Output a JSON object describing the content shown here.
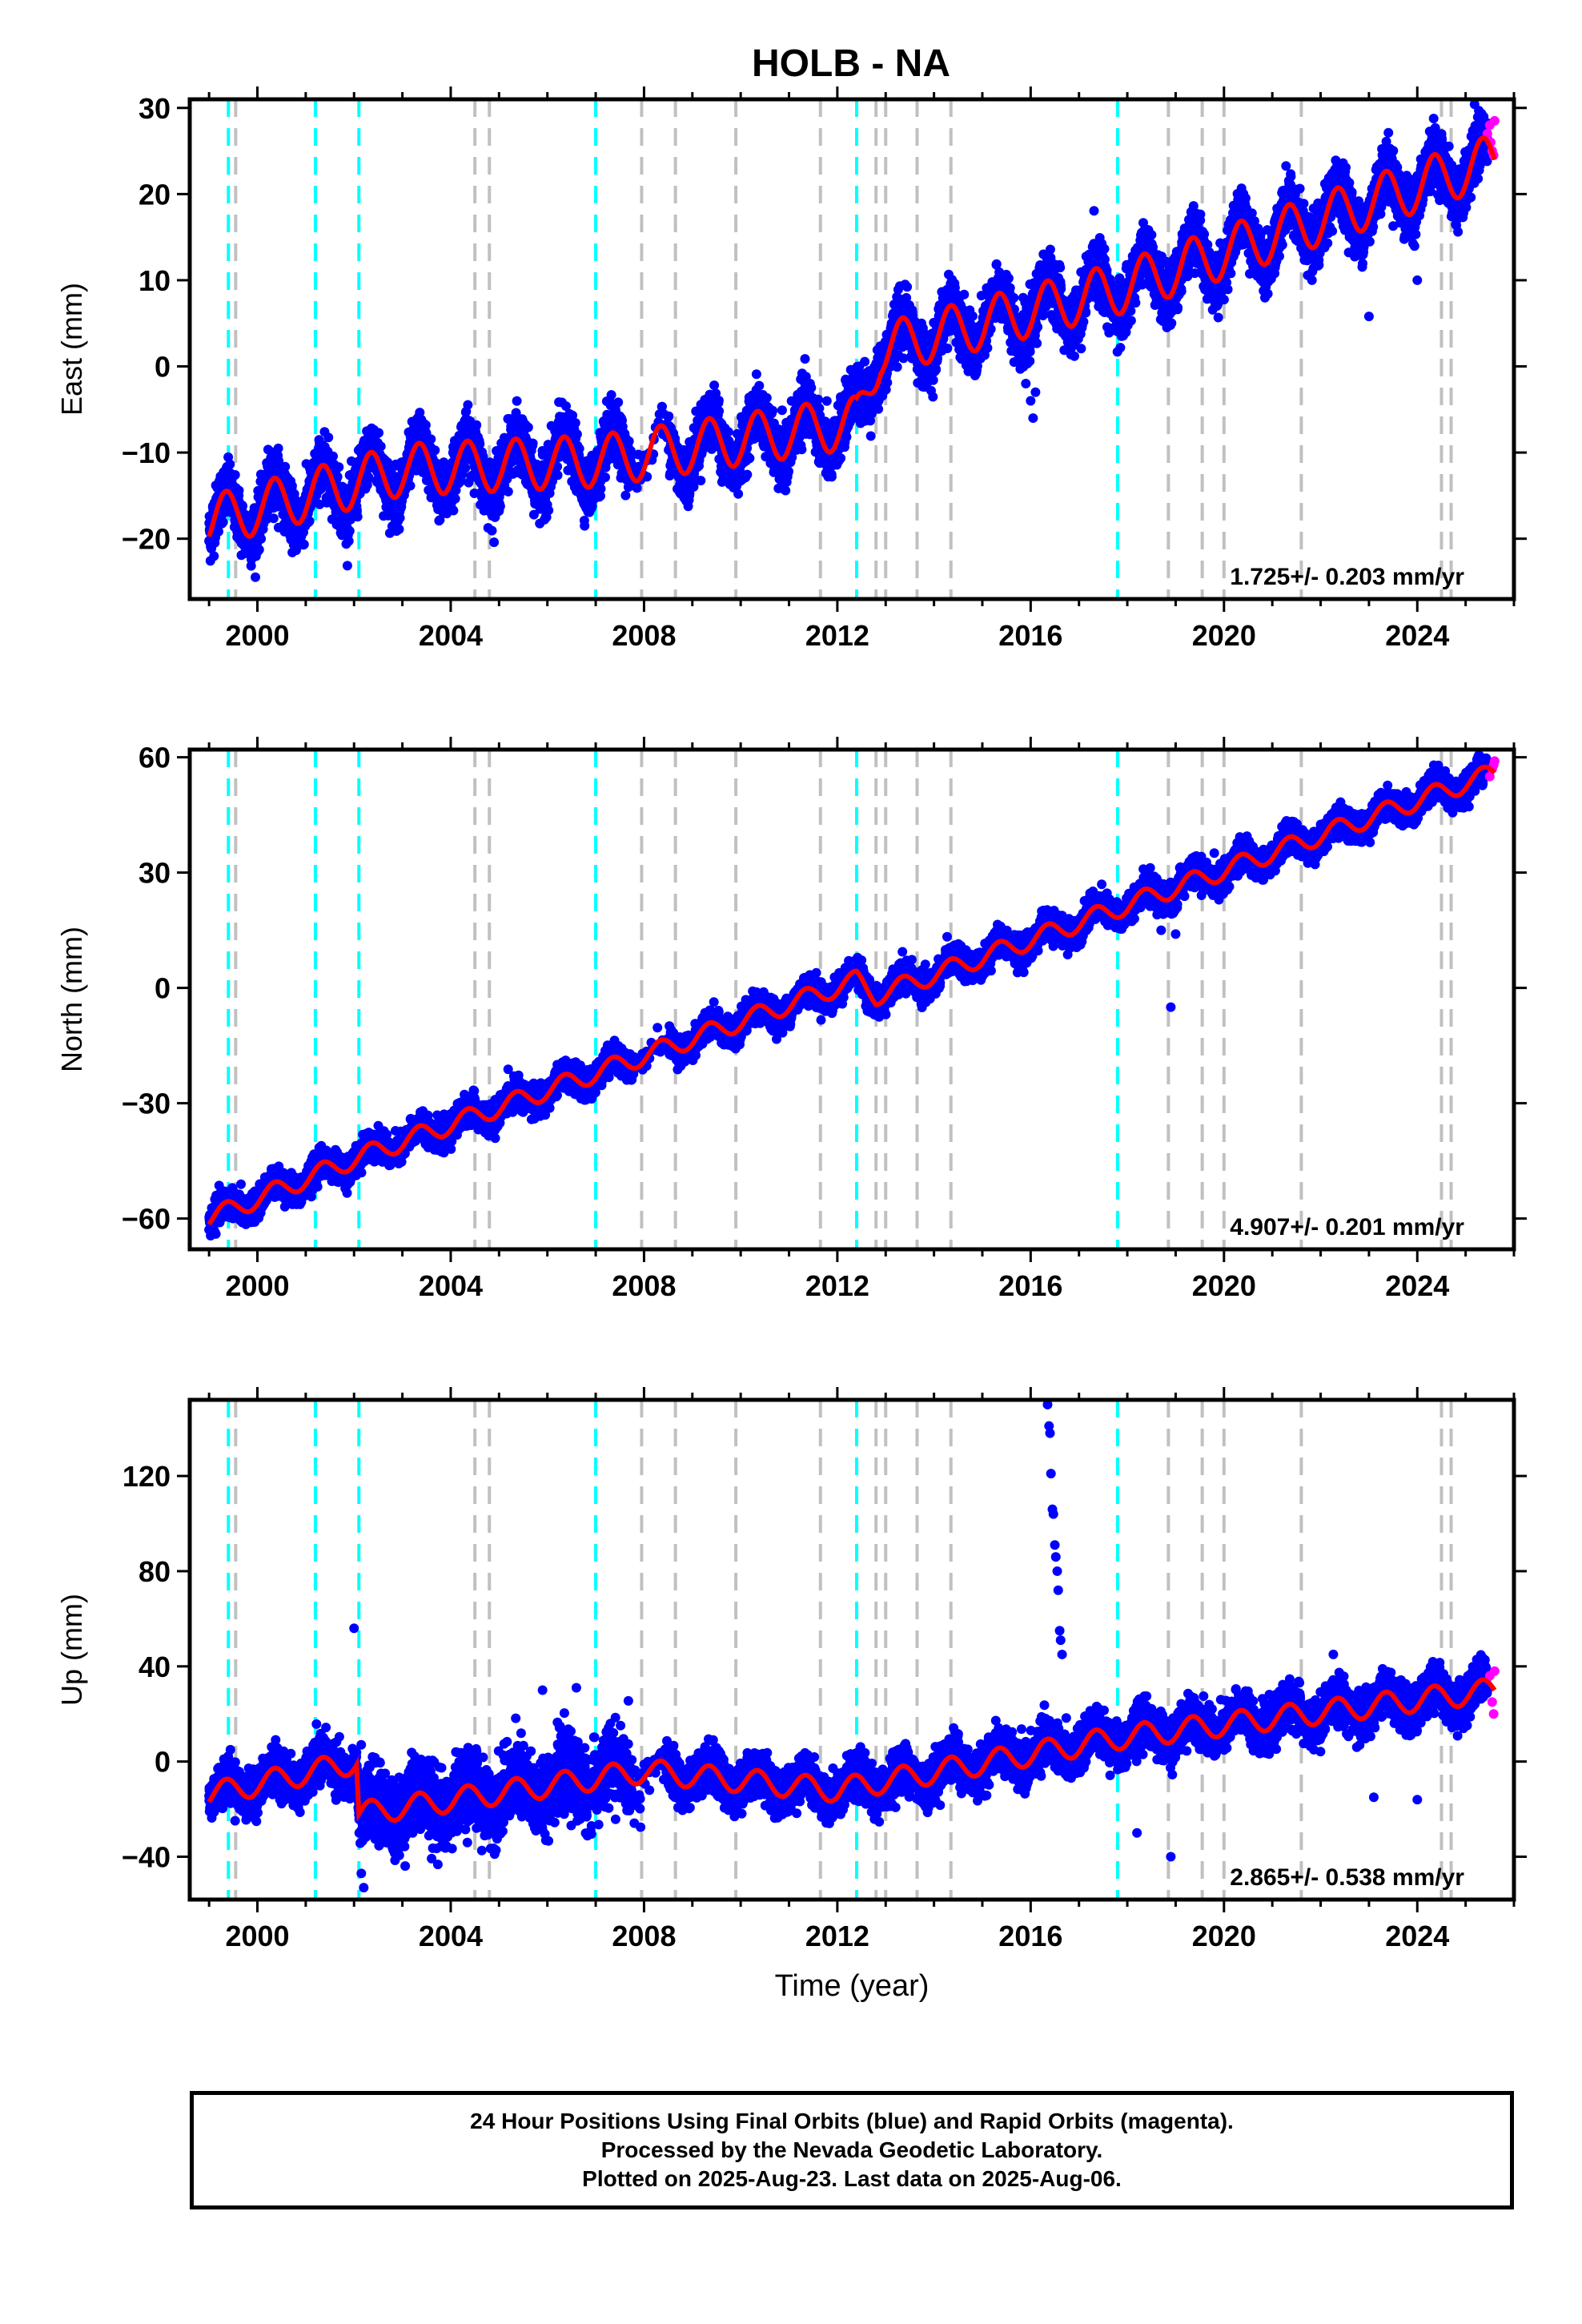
{
  "title": "HOLB - NA",
  "footer": {
    "line1": "24 Hour Positions Using Final Orbits (blue) and Rapid Orbits (magenta).",
    "line2": "Processed by the Nevada Geodetic Laboratory.",
    "line3": "Plotted on 2025-Aug-23. Last data on 2025-Aug-06."
  },
  "colors": {
    "final_orbits": "#0000ff",
    "rapid_orbits": "#ff00ff",
    "model": "#ff0000",
    "equipment_change": "#00ffff",
    "earthquake": "#c0c0c0"
  },
  "chart_data": [
    {
      "type": "scatter",
      "panel": "east",
      "ylabel": "East (mm)",
      "xlabel": "",
      "xlim": [
        1998.6,
        2026.0
      ],
      "ylim": [
        -27,
        31
      ],
      "xticks": [
        2000,
        2004,
        2008,
        2012,
        2016,
        2020,
        2024
      ],
      "yticks": [
        -20,
        -10,
        0,
        10,
        20,
        30
      ],
      "rate_label": "1.725+/- 0.203 mm/yr",
      "rate": 1.725,
      "trend_points": [
        [
          1999.0,
          -18
        ],
        [
          2003.0,
          -12
        ],
        [
          2007.0,
          -11
        ],
        [
          2012.4,
          -6.5
        ],
        [
          2012.9,
          2
        ],
        [
          2017.8,
          9
        ],
        [
          2019.9,
          13
        ],
        [
          2025.6,
          24
        ]
      ],
      "annual_amplitude": 3.0,
      "scatter_sd": 1.6,
      "outliers": [
        [
          2015.9,
          -2
        ],
        [
          2016.0,
          -4
        ],
        [
          2016.05,
          -6
        ],
        [
          2016.1,
          -3
        ],
        [
          2023.0,
          5.8
        ],
        [
          2024.0,
          10
        ]
      ],
      "rapid_points": [
        [
          2025.45,
          27
        ],
        [
          2025.5,
          28
        ],
        [
          2025.52,
          26
        ],
        [
          2025.55,
          25
        ],
        [
          2025.58,
          24.5
        ],
        [
          2025.6,
          28.5
        ]
      ],
      "equipment_changes": [
        1999.4,
        2001.2,
        2002.1,
        2007.0,
        2012.4,
        2017.8
      ],
      "earthquakes": [
        1999.55,
        2004.5,
        2004.8,
        2007.95,
        2008.65,
        2009.9,
        2011.65,
        2012.8,
        2013.0,
        2013.65,
        2014.35,
        2018.85,
        2019.55,
        2020.0,
        2021.6,
        2024.5,
        2024.7
      ]
    },
    {
      "type": "scatter",
      "panel": "north",
      "ylabel": "North (mm)",
      "xlabel": "",
      "xlim": [
        1998.6,
        2026.0
      ],
      "ylim": [
        -68,
        62
      ],
      "xticks": [
        2000,
        2004,
        2008,
        2012,
        2016,
        2020,
        2024
      ],
      "yticks": [
        -60,
        -30,
        0,
        30,
        60
      ],
      "rate_label": "4.907+/- 0.201 mm/yr",
      "rate": 4.907,
      "trend_points": [
        [
          1999.0,
          -60
        ],
        [
          2002.1,
          -44
        ],
        [
          2012.4,
          2
        ],
        [
          2012.8,
          -2
        ],
        [
          2025.6,
          56
        ]
      ],
      "annual_amplitude": 2.5,
      "scatter_sd": 1.8,
      "outliers": [
        [
          2018.9,
          -5
        ],
        [
          2018.7,
          15
        ],
        [
          2019.0,
          14
        ],
        [
          2002.5,
          -43
        ]
      ],
      "rapid_points": [
        [
          2025.5,
          55
        ],
        [
          2025.55,
          57
        ],
        [
          2025.58,
          58
        ],
        [
          2025.6,
          59
        ]
      ],
      "equipment_changes": [
        1999.4,
        2001.2,
        2002.1,
        2007.0,
        2012.4,
        2017.8
      ],
      "earthquakes": [
        1999.55,
        2004.5,
        2004.8,
        2007.95,
        2008.65,
        2009.9,
        2011.65,
        2012.8,
        2013.0,
        2013.65,
        2014.35,
        2018.85,
        2019.55,
        2020.0,
        2021.6,
        2024.5,
        2024.7
      ]
    },
    {
      "type": "scatter",
      "panel": "up",
      "ylabel": "Up (mm)",
      "xlabel": "Time (year)",
      "xlim": [
        1998.6,
        2026.0
      ],
      "ylim": [
        -58,
        152
      ],
      "xticks": [
        2000,
        2004,
        2008,
        2012,
        2016,
        2020,
        2024
      ],
      "yticks": [
        -40,
        0,
        40,
        80,
        120
      ],
      "rate_label": "2.865+/- 0.538 mm/yr",
      "rate": 2.865,
      "trend_points": [
        [
          1999.0,
          -14
        ],
        [
          2002.05,
          0
        ],
        [
          2002.1,
          -22
        ],
        [
          2008.0,
          -4
        ],
        [
          2012.0,
          -12
        ],
        [
          2017.8,
          10
        ],
        [
          2025.6,
          30
        ]
      ],
      "annual_amplitude": 5.0,
      "scatter_sd": 4.5,
      "outliers": [
        [
          2016.35,
          150
        ],
        [
          2016.38,
          141
        ],
        [
          2016.4,
          138
        ],
        [
          2016.42,
          121
        ],
        [
          2016.45,
          106
        ],
        [
          2016.47,
          104
        ],
        [
          2016.5,
          91
        ],
        [
          2016.52,
          86
        ],
        [
          2016.55,
          80
        ],
        [
          2016.57,
          72
        ],
        [
          2016.6,
          55
        ],
        [
          2016.62,
          51
        ],
        [
          2016.65,
          45
        ],
        [
          2002.0,
          56
        ],
        [
          2002.15,
          -47
        ],
        [
          2002.2,
          -53
        ],
        [
          2018.2,
          -30
        ],
        [
          2018.9,
          -40
        ],
        [
          2023.1,
          -15
        ],
        [
          2024.0,
          -16
        ],
        [
          2005.9,
          30
        ],
        [
          2006.6,
          31
        ]
      ],
      "rapid_points": [
        [
          2025.5,
          36
        ],
        [
          2025.55,
          25
        ],
        [
          2025.58,
          20
        ],
        [
          2025.6,
          38
        ]
      ],
      "equipment_changes": [
        1999.4,
        2001.2,
        2002.1,
        2007.0,
        2012.4,
        2017.8
      ],
      "earthquakes": [
        1999.55,
        2004.5,
        2004.8,
        2007.95,
        2008.65,
        2009.9,
        2011.65,
        2012.8,
        2013.0,
        2013.65,
        2014.35,
        2018.85,
        2019.55,
        2020.0,
        2021.6,
        2024.5,
        2024.7
      ]
    }
  ]
}
